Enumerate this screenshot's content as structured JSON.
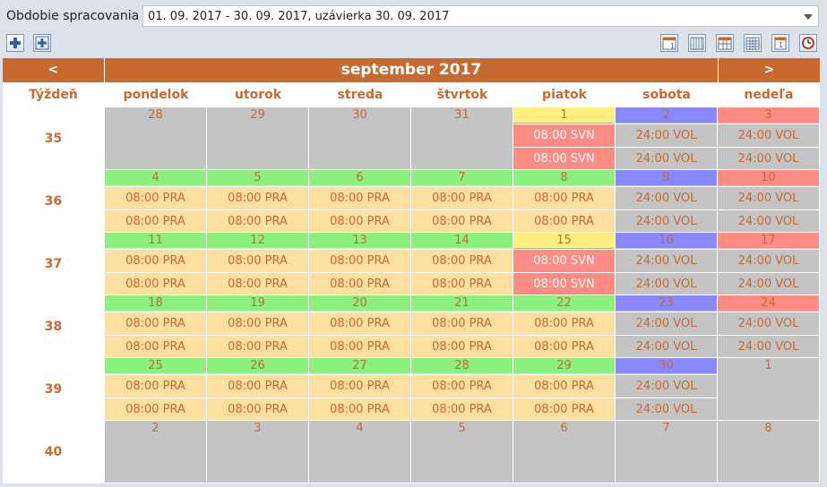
{
  "period": {
    "label": "Obdobie spracovania",
    "value": "01. 09. 2017 - 30. 09. 2017, uzávierka 30. 09. 2017"
  },
  "toolbar": {
    "left": [
      {
        "name": "add-icon"
      },
      {
        "name": "add-all-icon"
      }
    ],
    "right": [
      {
        "name": "day-view-icon"
      },
      {
        "name": "week-view-icon"
      },
      {
        "name": "workweek-view-icon"
      },
      {
        "name": "month-view-icon"
      },
      {
        "name": "single-day-icon"
      },
      {
        "name": "today-icon"
      }
    ]
  },
  "calendar": {
    "prev": "<",
    "next": ">",
    "title": "september 2017",
    "week_header": "Týždeň",
    "daynames": [
      "pondelok",
      "utorok",
      "streda",
      "štvrtok",
      "piatok",
      "sobota",
      "nedeľa"
    ],
    "colors": {
      "other": "#c4c4c4",
      "work_num": "#8cf07e",
      "work_slot": "#fde0a0",
      "vol_num": "#ffee80",
      "vol_slot": "#fe8b84",
      "sat_num": "#8a88ff",
      "sun_num": "#fe8b84",
      "weekend_slot": "#c4c4c4",
      "num_text": "#c8692f",
      "slot_text": "#c8692f",
      "svn_text": "#ffffff"
    },
    "weeks": [
      {
        "week": "35",
        "days": [
          {
            "n": "28",
            "t": "other",
            "slots": []
          },
          {
            "n": "29",
            "t": "other",
            "slots": []
          },
          {
            "n": "30",
            "t": "other",
            "slots": []
          },
          {
            "n": "31",
            "t": "other",
            "slots": []
          },
          {
            "n": "1",
            "t": "vol",
            "slots": [
              "08:00 SVN",
              "08:00 SVN"
            ]
          },
          {
            "n": "2",
            "t": "sat",
            "slots": [
              "24:00 VOL",
              "24:00 VOL"
            ]
          },
          {
            "n": "3",
            "t": "sun",
            "slots": [
              "24:00 VOL",
              "24:00 VOL"
            ]
          }
        ]
      },
      {
        "week": "36",
        "days": [
          {
            "n": "4",
            "t": "work",
            "slots": [
              "08:00 PRA",
              "08:00 PRA"
            ]
          },
          {
            "n": "5",
            "t": "work",
            "slots": [
              "08:00 PRA",
              "08:00 PRA"
            ]
          },
          {
            "n": "6",
            "t": "work",
            "slots": [
              "08:00 PRA",
              "08:00 PRA"
            ]
          },
          {
            "n": "7",
            "t": "work",
            "slots": [
              "08:00 PRA",
              "08:00 PRA"
            ]
          },
          {
            "n": "8",
            "t": "work",
            "slots": [
              "08:00 PRA",
              "08:00 PRA"
            ]
          },
          {
            "n": "9",
            "t": "sat",
            "slots": [
              "24:00 VOL",
              "24:00 VOL"
            ]
          },
          {
            "n": "10",
            "t": "sun",
            "slots": [
              "24:00 VOL",
              "24:00 VOL"
            ]
          }
        ]
      },
      {
        "week": "37",
        "days": [
          {
            "n": "11",
            "t": "work",
            "slots": [
              "08:00 PRA",
              "08:00 PRA"
            ]
          },
          {
            "n": "12",
            "t": "work",
            "slots": [
              "08:00 PRA",
              "08:00 PRA"
            ]
          },
          {
            "n": "13",
            "t": "work",
            "slots": [
              "08:00 PRA",
              "08:00 PRA"
            ]
          },
          {
            "n": "14",
            "t": "work",
            "slots": [
              "08:00 PRA",
              "08:00 PRA"
            ]
          },
          {
            "n": "15",
            "t": "vol",
            "slots": [
              "08:00 SVN",
              "08:00 SVN"
            ]
          },
          {
            "n": "16",
            "t": "sat",
            "slots": [
              "24:00 VOL",
              "24:00 VOL"
            ]
          },
          {
            "n": "17",
            "t": "sun",
            "slots": [
              "24:00 VOL",
              "24:00 VOL"
            ]
          }
        ]
      },
      {
        "week": "38",
        "days": [
          {
            "n": "18",
            "t": "work",
            "slots": [
              "08:00 PRA",
              "08:00 PRA"
            ]
          },
          {
            "n": "19",
            "t": "work",
            "slots": [
              "08:00 PRA",
              "08:00 PRA"
            ]
          },
          {
            "n": "20",
            "t": "work",
            "slots": [
              "08:00 PRA",
              "08:00 PRA"
            ]
          },
          {
            "n": "21",
            "t": "work",
            "slots": [
              "08:00 PRA",
              "08:00 PRA"
            ]
          },
          {
            "n": "22",
            "t": "work",
            "slots": [
              "08:00 PRA",
              "08:00 PRA"
            ]
          },
          {
            "n": "23",
            "t": "sat",
            "slots": [
              "24:00 VOL",
              "24:00 VOL"
            ]
          },
          {
            "n": "24",
            "t": "sun",
            "slots": [
              "24:00 VOL",
              "24:00 VOL"
            ]
          }
        ]
      },
      {
        "week": "39",
        "days": [
          {
            "n": "25",
            "t": "work",
            "slots": [
              "08:00 PRA",
              "08:00 PRA"
            ]
          },
          {
            "n": "26",
            "t": "work",
            "slots": [
              "08:00 PRA",
              "08:00 PRA"
            ]
          },
          {
            "n": "27",
            "t": "work",
            "slots": [
              "08:00 PRA",
              "08:00 PRA"
            ]
          },
          {
            "n": "28",
            "t": "work",
            "slots": [
              "08:00 PRA",
              "08:00 PRA"
            ]
          },
          {
            "n": "29",
            "t": "work",
            "slots": [
              "08:00 PRA",
              "08:00 PRA"
            ]
          },
          {
            "n": "30",
            "t": "sat",
            "slots": [
              "24:00 VOL",
              "24:00 VOL"
            ]
          },
          {
            "n": "1",
            "t": "other",
            "slots": []
          }
        ]
      },
      {
        "week": "40",
        "days": [
          {
            "n": "2",
            "t": "other",
            "slots": []
          },
          {
            "n": "3",
            "t": "other",
            "slots": []
          },
          {
            "n": "4",
            "t": "other",
            "slots": []
          },
          {
            "n": "5",
            "t": "other",
            "slots": []
          },
          {
            "n": "6",
            "t": "other",
            "slots": []
          },
          {
            "n": "7",
            "t": "other",
            "slots": []
          },
          {
            "n": "8",
            "t": "other",
            "slots": []
          }
        ]
      }
    ]
  }
}
